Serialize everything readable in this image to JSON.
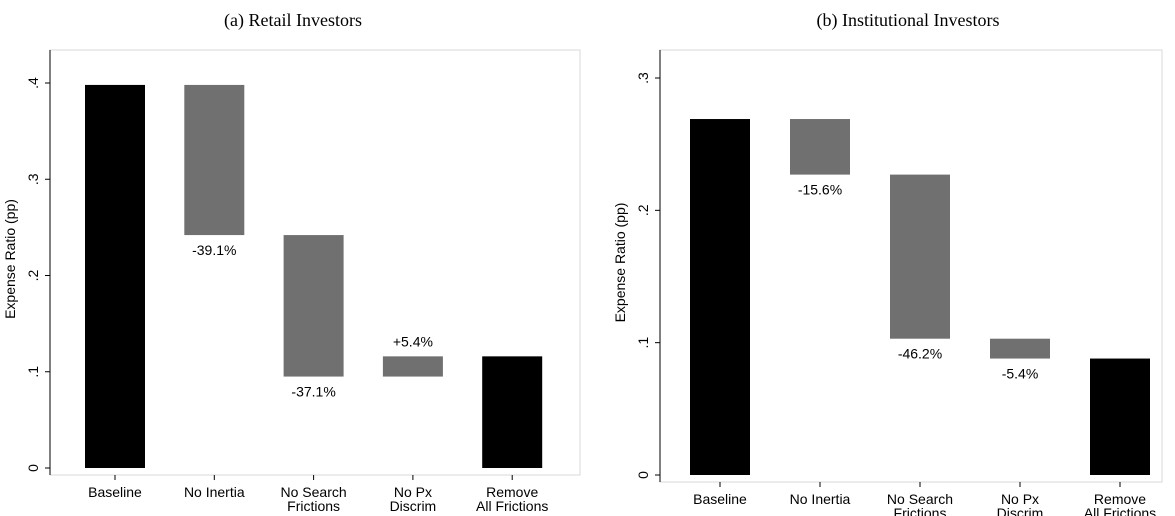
{
  "chart_data": [
    {
      "type": "waterfall",
      "title": "(a) Retail Investors",
      "ylabel": "Expense Ratio (pp)",
      "categories": [
        [
          "Baseline"
        ],
        [
          "No Inertia"
        ],
        [
          "No Search",
          "Frictions"
        ],
        [
          "No Px",
          "Discrim"
        ],
        [
          "Remove",
          "All Frictions"
        ]
      ],
      "values": [
        0.398,
        -0.156,
        -0.147,
        0.021,
        0.116
      ],
      "is_total": [
        true,
        false,
        false,
        false,
        true
      ],
      "annotations": [
        null,
        "-39.1%",
        "-37.1%",
        "+5.4%",
        null
      ],
      "total_color": "#000000",
      "change_color": "#707070",
      "ylim": [
        0,
        0.4
      ],
      "yticks": [
        0,
        {
          "value": 0.1,
          "label": ".1"
        },
        {
          "value": 0.2,
          "label": ".2"
        },
        {
          "value": 0.3,
          "label": ".3"
        },
        {
          "value": 0.4,
          "label": ".4"
        }
      ]
    },
    {
      "type": "waterfall",
      "title": "(b) Institutional Investors",
      "ylabel": "Expense Ratio (pp)",
      "categories": [
        [
          "Baseline"
        ],
        [
          "No Inertia"
        ],
        [
          "No Search",
          "Frictions"
        ],
        [
          "No Px",
          "Discrim"
        ],
        [
          "Remove",
          "All Frictions"
        ]
      ],
      "values": [
        0.269,
        -0.042,
        -0.124,
        -0.015,
        0.088
      ],
      "is_total": [
        true,
        false,
        false,
        false,
        true
      ],
      "annotations": [
        null,
        "-15.6%",
        "-46.2%",
        "-5.4%",
        null
      ],
      "total_color": "#000000",
      "change_color": "#707070",
      "ylim": [
        0,
        0.3
      ],
      "yticks": [
        0,
        {
          "value": 0.1,
          "label": ".1"
        },
        {
          "value": 0.2,
          "label": ".2"
        },
        {
          "value": 0.3,
          "label": ".3"
        }
      ]
    }
  ]
}
